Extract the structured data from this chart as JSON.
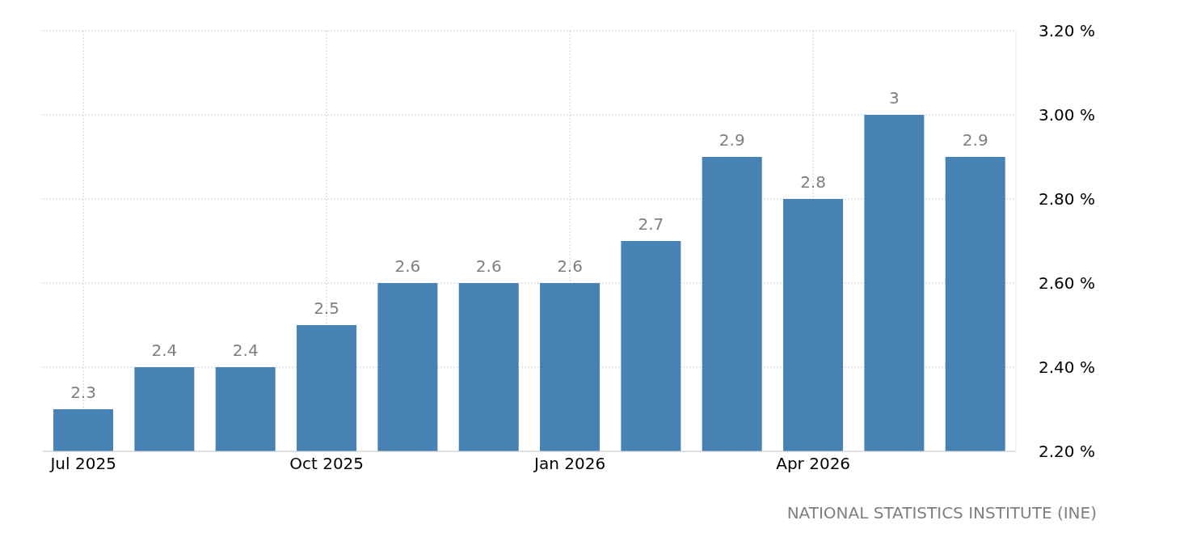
{
  "chart_data": {
    "type": "bar",
    "categories": [
      "Jul 2025",
      null,
      null,
      "Oct 2025",
      null,
      null,
      "Jan 2026",
      null,
      null,
      "Apr 2026",
      null,
      null
    ],
    "values": [
      2.3,
      2.4,
      2.4,
      2.5,
      2.6,
      2.6,
      2.6,
      2.7,
      2.9,
      2.8,
      3.0,
      2.9
    ],
    "color": "#4682b4",
    "ylim": [
      2.2,
      3.2
    ],
    "yticks": [
      {
        "value": 2.2,
        "label": "2.20 %"
      },
      {
        "value": 2.4,
        "label": "2.40 %"
      },
      {
        "value": 2.6,
        "label": "2.60 %"
      },
      {
        "value": 2.8,
        "label": "2.80 %"
      },
      {
        "value": 3.0,
        "label": "3.00 %"
      },
      {
        "value": 3.2,
        "label": "3.20 %"
      }
    ],
    "grid": true,
    "data_labels": true,
    "annotations": [
      "NATIONAL STATISTICS INSTITUTE (INE)"
    ]
  }
}
